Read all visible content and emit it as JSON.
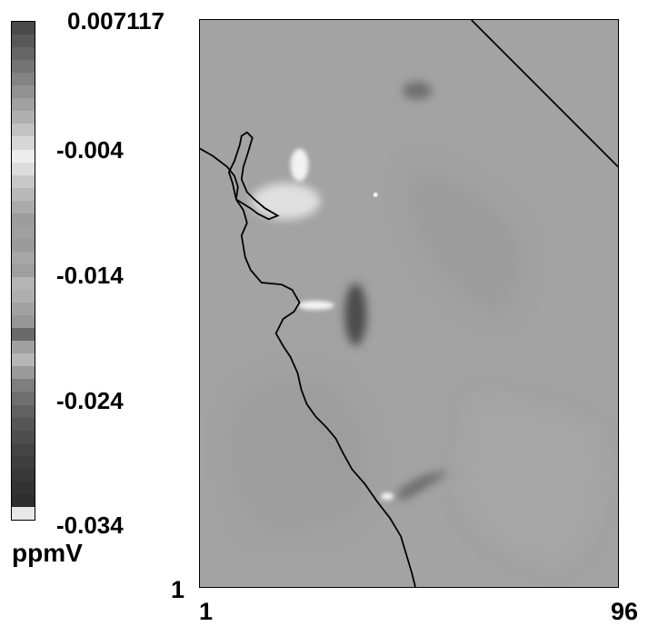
{
  "colorbar": {
    "unit": "ppmV",
    "tick_labels": [
      "0.007117",
      "-0.004",
      "-0.014",
      "-0.024",
      "-0.034"
    ],
    "bands": [
      "#4a4a4a",
      "#585858",
      "#666666",
      "#747474",
      "#838383",
      "#929292",
      "#a1a1a1",
      "#b0b0b0",
      "#c2c2c2",
      "#d6d6d6",
      "#ececec",
      "#dcdcdc",
      "#c8c8c8",
      "#b8b8b8",
      "#aaaaaa",
      "#9c9c9c",
      "#a0a0a0",
      "#9a9a9a",
      "#a6a6a6",
      "#9e9e9e",
      "#b4b4b4",
      "#aeaeae",
      "#a2a2a2",
      "#969696",
      "#6a6a6a",
      "#a0a0a0",
      "#b6b6b6",
      "#9a9a9a",
      "#7e7e7e",
      "#6e6e6e",
      "#626262",
      "#565656",
      "#4e4e4e",
      "#444444",
      "#3e3e3e",
      "#383838",
      "#333333",
      "#2e2e2e",
      "#e8e8e8"
    ]
  },
  "axes": {
    "y_min_label": "1",
    "x_min_label": "1",
    "x_max_label": "96"
  },
  "colors": {
    "background": "#a3a3a3",
    "boundary": "#000000"
  }
}
